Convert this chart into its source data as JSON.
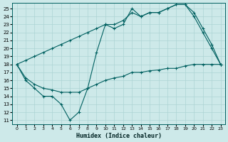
{
  "xlabel": "Humidex (Indice chaleur)",
  "xlim": [
    -0.5,
    23.5
  ],
  "ylim": [
    10.5,
    25.7
  ],
  "xticks": [
    0,
    1,
    2,
    3,
    4,
    5,
    6,
    7,
    8,
    9,
    10,
    11,
    12,
    13,
    14,
    15,
    16,
    17,
    18,
    19,
    20,
    21,
    22,
    23
  ],
  "yticks": [
    11,
    12,
    13,
    14,
    15,
    16,
    17,
    18,
    19,
    20,
    21,
    22,
    23,
    24,
    25
  ],
  "bg_color": "#cde9e9",
  "grid_color": "#acd4d4",
  "line_color": "#006060",
  "line1_x": [
    0,
    1,
    2,
    3,
    4,
    5,
    6,
    7,
    8,
    9,
    10,
    11,
    12,
    13,
    14,
    15,
    16,
    17,
    18,
    19,
    20,
    21,
    22,
    23
  ],
  "line1_y": [
    18,
    16,
    15,
    14,
    14,
    13,
    11,
    12,
    15,
    19.5,
    23,
    22.5,
    23,
    25,
    24,
    24.5,
    24.5,
    25,
    25.5,
    25.5,
    24,
    22,
    20,
    18
  ],
  "line2_x": [
    0,
    1,
    2,
    3,
    4,
    5,
    6,
    7,
    8,
    9,
    10,
    11,
    12,
    13,
    14,
    15,
    16,
    17,
    18,
    19,
    20,
    21,
    22,
    23
  ],
  "line2_y": [
    18,
    18.5,
    19,
    19.5,
    20,
    20.5,
    21,
    21.5,
    22,
    22.5,
    23,
    23,
    23.5,
    24.5,
    24,
    24.5,
    24.5,
    25,
    25.5,
    25.5,
    24.5,
    22.5,
    20.5,
    18
  ],
  "line3_x": [
    0,
    1,
    2,
    3,
    4,
    5,
    6,
    7,
    8,
    9,
    10,
    11,
    12,
    13,
    14,
    15,
    16,
    17,
    18,
    19,
    20,
    21,
    22,
    23
  ],
  "line3_y": [
    18,
    16.3,
    15.5,
    15,
    14.8,
    14.5,
    14.5,
    14.5,
    15,
    15.5,
    16,
    16.3,
    16.5,
    17,
    17,
    17.2,
    17.3,
    17.5,
    17.5,
    17.8,
    18,
    18,
    18,
    18
  ]
}
